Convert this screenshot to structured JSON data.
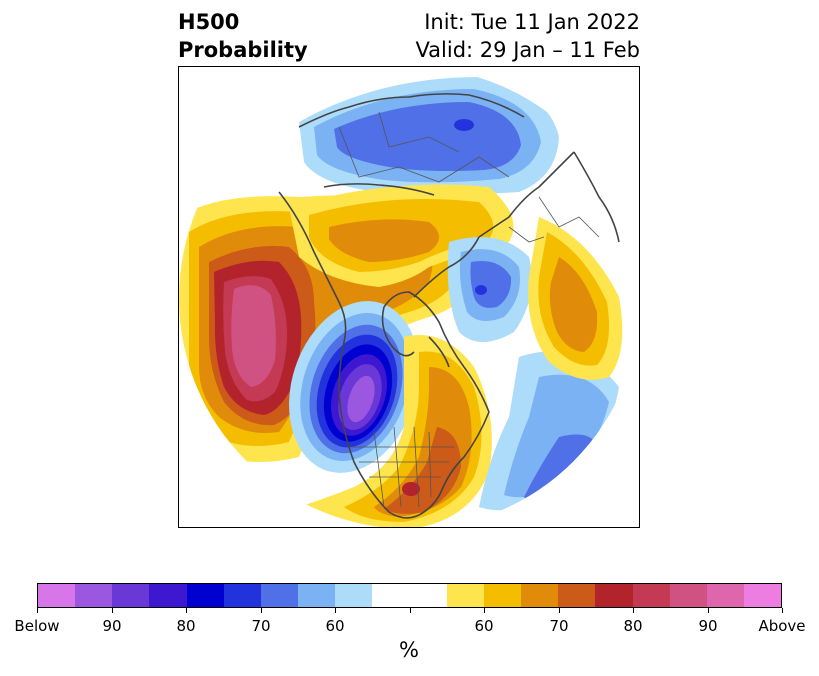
{
  "title": {
    "left_line1": "H500",
    "left_line2": "Probability",
    "right_line1": "Init: Tue 11 Jan 2022",
    "right_line2": "Valid: 29 Jan – 11 Feb"
  },
  "colorbar": {
    "colors": [
      "#d676e8",
      "#9c57e0",
      "#6b38d8",
      "#3d18d0",
      "#0000d0",
      "#2233dd",
      "#4f70e6",
      "#7ab2f3",
      "#acdcfa",
      "#ffffff",
      "#ffffff",
      "#ffe54d",
      "#f5bd00",
      "#e08c0a",
      "#cc5a18",
      "#b2232b",
      "#c43a55",
      "#d05283",
      "#de66ad",
      "#ee7de2"
    ],
    "tick_labels": [
      "Below",
      "90",
      "80",
      "70",
      "60",
      "",
      "60",
      "70",
      "80",
      "90",
      "Above"
    ],
    "unit": "%"
  },
  "map": {
    "projection": "north-polar-stereographic",
    "field": "500 hPa height anomaly probability",
    "features": [
      {
        "name": "eastern-pacific-ridge",
        "category": "Above",
        "peak": "Above"
      },
      {
        "name": "western-north-america-trough",
        "category": "Below",
        "peak": "Below"
      },
      {
        "name": "eastern-united-states-ridge",
        "category": "Above",
        "peak": "80"
      },
      {
        "name": "northern-eurasia-trough",
        "category": "Below",
        "peak": "80"
      },
      {
        "name": "arctic-north-atlantic-ridge",
        "category": "Above",
        "peak": "70"
      },
      {
        "name": "north-atlantic-trough",
        "category": "Below",
        "peak": "70"
      },
      {
        "name": "east-asia-ridge",
        "category": "Above",
        "peak": "70"
      }
    ]
  }
}
